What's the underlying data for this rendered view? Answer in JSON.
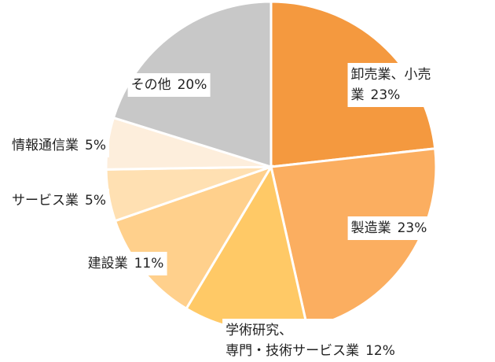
{
  "chart_data": {
    "type": "pie",
    "categories": [
      "卸売業、小売業",
      "製造業",
      "学術研究、\n専門・技術サービス業",
      "建設業",
      "サービス業",
      "情報通信業",
      "その他"
    ],
    "values": [
      23,
      23,
      12,
      11,
      5,
      5,
      20
    ],
    "value_labels": [
      "23%",
      "23%",
      "12%",
      "11%",
      "5%",
      "5%",
      "20%"
    ],
    "colors": [
      "#f4993f",
      "#fbae60",
      "#ffc966",
      "#ffd08c",
      "#ffe0b2",
      "#fdeedc",
      "#c8c8c8"
    ]
  }
}
